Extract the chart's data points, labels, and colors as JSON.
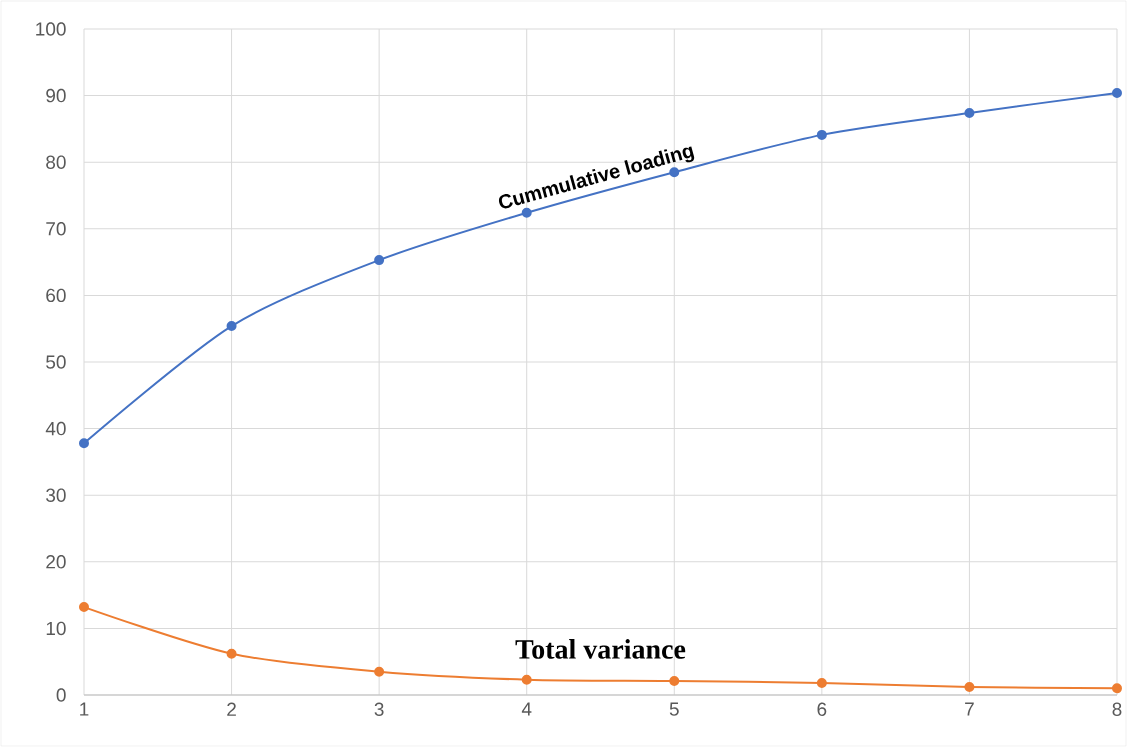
{
  "chart_data": {
    "type": "line",
    "x": [
      1,
      2,
      3,
      4,
      5,
      6,
      7,
      8
    ],
    "series": [
      {
        "name": "Cummulative loading",
        "color": "#4472c4",
        "values": [
          37.8,
          55.4,
          65.3,
          72.4,
          78.5,
          84.1,
          87.4,
          90.4
        ]
      },
      {
        "name": "Total variance",
        "color": "#ed7d31",
        "values": [
          13.2,
          6.2,
          3.5,
          2.3,
          2.1,
          1.8,
          1.2,
          1.0
        ]
      }
    ],
    "xlim": [
      1,
      8
    ],
    "xticks": [
      1,
      2,
      3,
      4,
      5,
      6,
      7,
      8
    ],
    "ylim": [
      0,
      100
    ],
    "yticks": [
      0,
      10,
      20,
      30,
      40,
      50,
      60,
      70,
      80,
      90,
      100
    ],
    "grid": true,
    "marker": "circle",
    "line_style": "solid"
  }
}
